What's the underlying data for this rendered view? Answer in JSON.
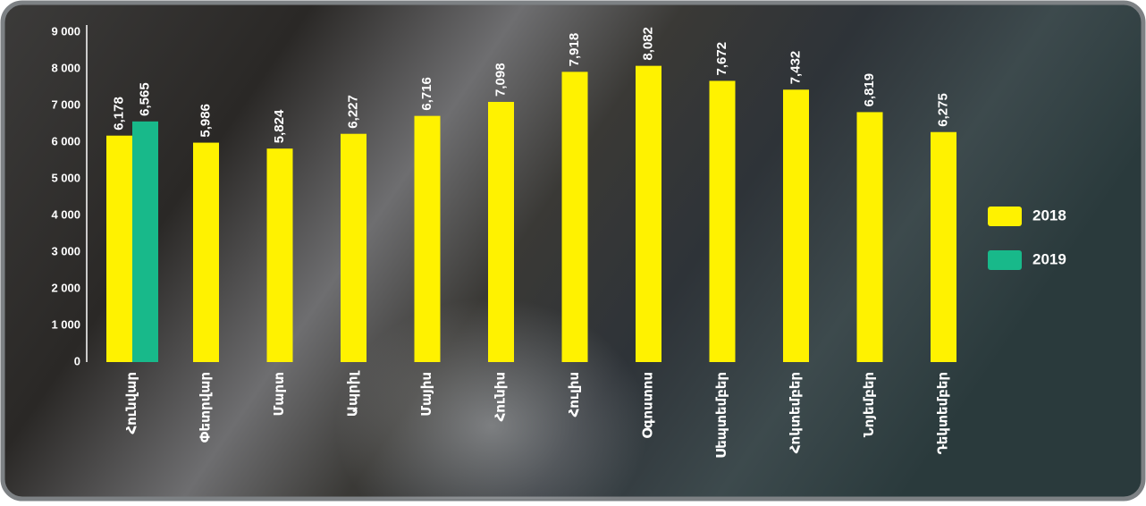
{
  "chart_data": {
    "type": "bar",
    "categories": [
      "Հունվար",
      "Փետրվար",
      "Մարտ",
      "Ապրիլ",
      "Մայիս",
      "Հունիս",
      "Հուլիս",
      "Օգոստոս",
      "Սեպտեմբեր",
      "Հոկտեմբեր",
      "Նոյեմբեր",
      "Դեկտեմբեր"
    ],
    "series": [
      {
        "name": "2018",
        "color": "#fff200",
        "values": [
          6178,
          5986,
          5824,
          6227,
          6716,
          7098,
          7918,
          8082,
          7672,
          7432,
          6819,
          6275
        ],
        "value_labels": [
          "6,178",
          "5,986",
          "5,824",
          "6,227",
          "6,716",
          "7,098",
          "7,918",
          "8,082",
          "7,672",
          "7,432",
          "6,819",
          "6,275"
        ]
      },
      {
        "name": "2019",
        "color": "#18b98a",
        "values": [
          6565,
          null,
          null,
          null,
          null,
          null,
          null,
          null,
          null,
          null,
          null,
          null
        ],
        "value_labels": [
          "6,565",
          null,
          null,
          null,
          null,
          null,
          null,
          null,
          null,
          null,
          null,
          null
        ]
      }
    ],
    "ylim": [
      0,
      9000
    ],
    "yticks": [
      0,
      {
        "value": 1000,
        "label": "1 000"
      },
      {
        "value": 2000,
        "label": "2 000"
      },
      {
        "value": 3000,
        "label": "3 000"
      },
      {
        "value": 4000,
        "label": "4 000"
      },
      {
        "value": 5000,
        "label": "5 000"
      },
      {
        "value": 6000,
        "label": "6 000"
      },
      {
        "value": 7000,
        "label": "7 000"
      },
      {
        "value": 8000,
        "label": "8 000"
      },
      {
        "value": 9000,
        "label": "9 000"
      }
    ],
    "legend": "right"
  }
}
